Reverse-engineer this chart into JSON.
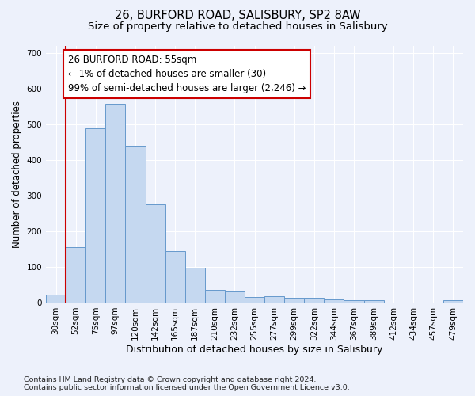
{
  "title1": "26, BURFORD ROAD, SALISBURY, SP2 8AW",
  "title2": "Size of property relative to detached houses in Salisbury",
  "xlabel": "Distribution of detached houses by size in Salisbury",
  "ylabel": "Number of detached properties",
  "categories": [
    "30sqm",
    "52sqm",
    "75sqm",
    "97sqm",
    "120sqm",
    "142sqm",
    "165sqm",
    "187sqm",
    "210sqm",
    "232sqm",
    "255sqm",
    "277sqm",
    "299sqm",
    "322sqm",
    "344sqm",
    "367sqm",
    "389sqm",
    "412sqm",
    "434sqm",
    "457sqm",
    "479sqm"
  ],
  "values": [
    22,
    155,
    487,
    558,
    440,
    275,
    145,
    97,
    35,
    32,
    15,
    18,
    13,
    13,
    8,
    6,
    6,
    0,
    0,
    0,
    6
  ],
  "bar_color": "#c5d8f0",
  "bar_edge_color": "#6699cc",
  "annotation_text_lines": [
    "26 BURFORD ROAD: 55sqm",
    "← 1% of detached houses are smaller (30)",
    "99% of semi-detached houses are larger (2,246) →"
  ],
  "annotation_box_facecolor": "#ffffff",
  "annotation_box_edgecolor": "#cc0000",
  "vline_color": "#cc0000",
  "vline_x": 0.5,
  "ylim": [
    0,
    720
  ],
  "yticks": [
    0,
    100,
    200,
    300,
    400,
    500,
    600,
    700
  ],
  "footnote1": "Contains HM Land Registry data © Crown copyright and database right 2024.",
  "footnote2": "Contains public sector information licensed under the Open Government Licence v3.0.",
  "bg_color": "#edf1fb",
  "grid_color": "#ffffff",
  "title1_fontsize": 10.5,
  "title2_fontsize": 9.5,
  "tick_fontsize": 7.5,
  "ylabel_fontsize": 8.5,
  "xlabel_fontsize": 9,
  "footnote_fontsize": 6.8,
  "ann_fontsize": 8.5
}
